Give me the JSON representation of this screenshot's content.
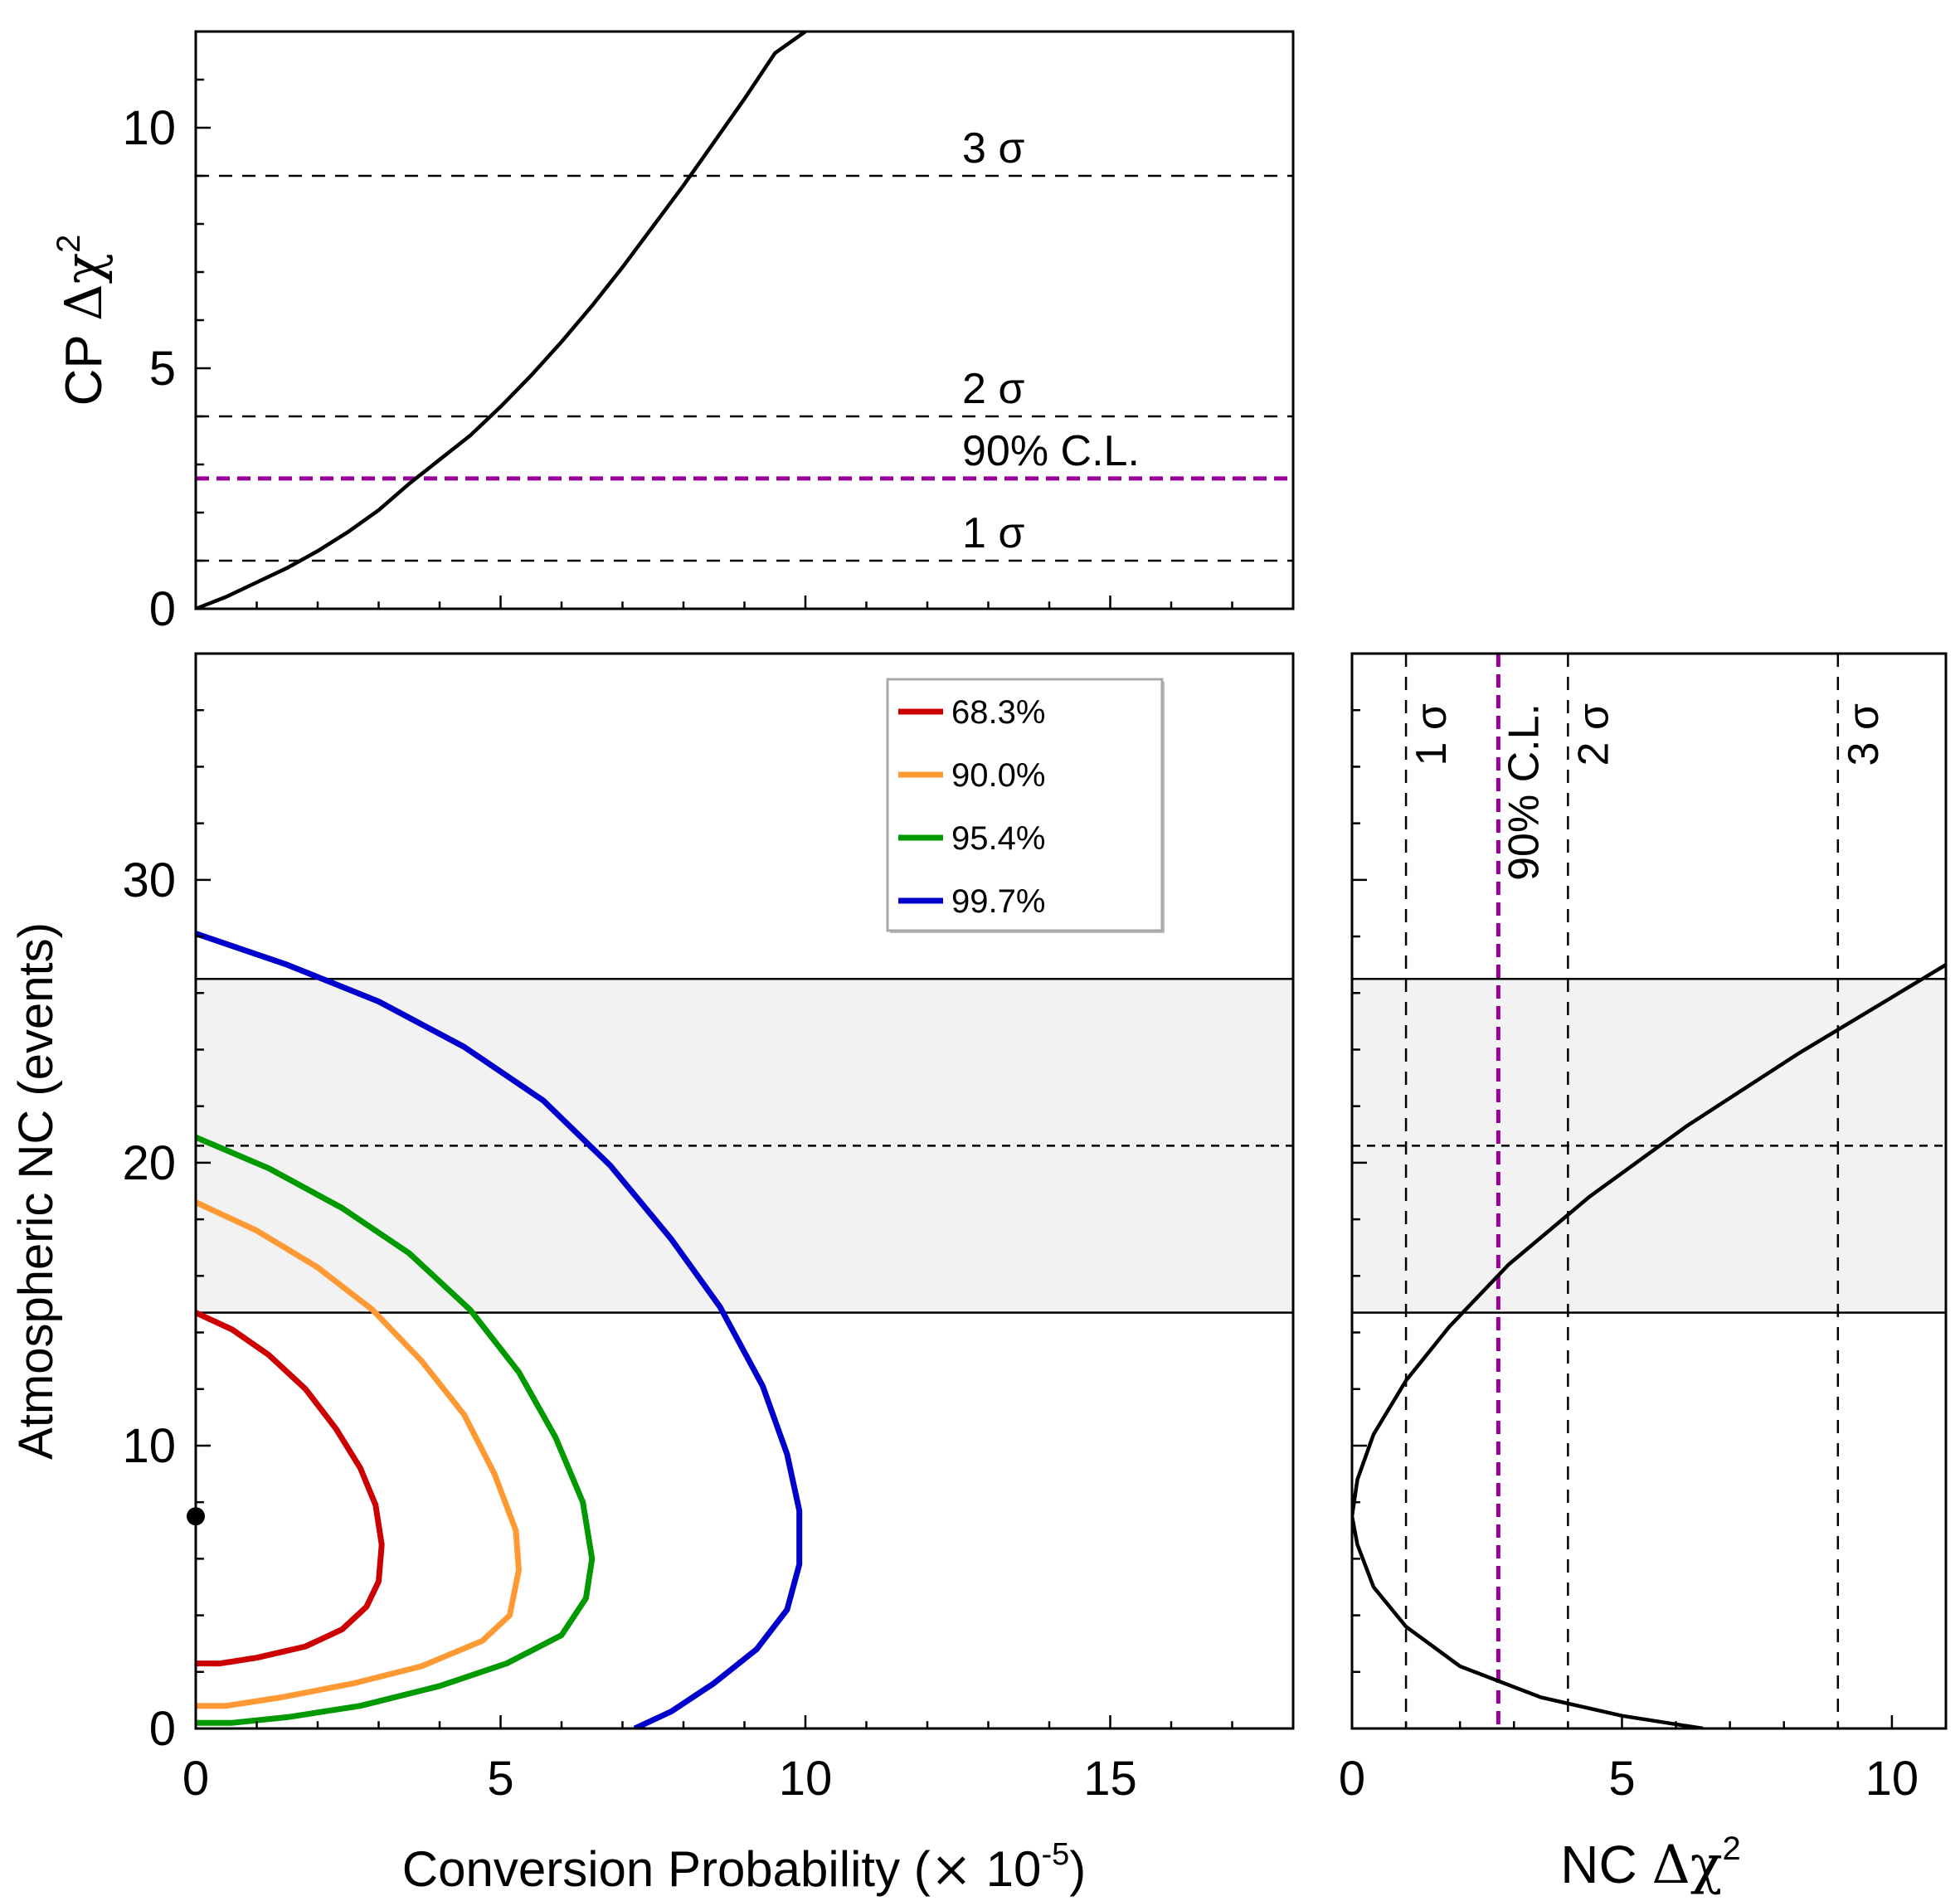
{
  "chart_data": [
    {
      "panel": "top",
      "type": "line",
      "xlim": [
        0,
        18
      ],
      "ylim": [
        0,
        12
      ],
      "ylabel": {
        "prefix": "CP ",
        "delta": "Δχ",
        "sup": "2"
      },
      "x_ticks": [],
      "y_ticks": [
        "0",
        "5",
        "10"
      ],
      "series": [
        {
          "color": "#000000",
          "x": [
            0,
            0.5,
            1,
            1.5,
            2,
            2.5,
            3,
            3.5,
            4,
            4.5,
            5,
            5.5,
            6,
            6.5,
            7,
            7.5,
            8,
            8.5,
            9,
            9.5,
            10
          ],
          "y": [
            0,
            0.25,
            0.55,
            0.85,
            1.2,
            1.6,
            2.05,
            2.6,
            3.1,
            3.6,
            4.2,
            4.85,
            5.55,
            6.3,
            7.1,
            7.95,
            8.8,
            9.7,
            10.6,
            11.55,
            12
          ]
        }
      ],
      "reference_lines": [
        {
          "y": 9,
          "label": "3 σ",
          "color": "#000000"
        },
        {
          "y": 4,
          "label": "2 σ",
          "color": "#000000"
        },
        {
          "y": 2.71,
          "label": "90% C.L.",
          "color": "#990099"
        },
        {
          "y": 1,
          "label": "1 σ",
          "color": "#000000"
        }
      ]
    },
    {
      "panel": "main",
      "type": "line",
      "xlabel": {
        "text": "Conversion Probability (",
        "times": "×",
        "base": " 10",
        "sup": "-5",
        "close": ")"
      },
      "ylabel": "Atmospheric NC (events)",
      "xlim": [
        0,
        18
      ],
      "ylim": [
        0,
        38
      ],
      "x_ticks": [
        "0",
        "5",
        "10",
        "15"
      ],
      "y_ticks": [
        "0",
        "10",
        "20",
        "30"
      ],
      "band": {
        "y_low": 14.7,
        "y_high": 26.5,
        "center": 20.6,
        "color": "#f2f2f2"
      },
      "best_fit": {
        "x": 0,
        "y": 7.5
      },
      "legend_position": "top-right",
      "series": [
        {
          "name": "68.3%",
          "color": "#cc0000",
          "x": [
            0,
            0.6,
            1.2,
            1.8,
            2.3,
            2.7,
            2.95,
            3.05,
            3.0,
            2.8,
            2.4,
            1.8,
            1.0,
            0.4,
            0
          ],
          "y": [
            14.7,
            14.1,
            13.2,
            12.0,
            10.6,
            9.2,
            7.9,
            6.5,
            5.2,
            4.3,
            3.5,
            2.9,
            2.5,
            2.3,
            2.3
          ]
        },
        {
          "name": "90.0%",
          "color": "#ff9933",
          "x": [
            0,
            1.0,
            2.0,
            2.9,
            3.7,
            4.4,
            4.9,
            5.25,
            5.3,
            5.15,
            4.7,
            3.7,
            2.6,
            1.4,
            0.5,
            0
          ],
          "y": [
            18.6,
            17.6,
            16.3,
            14.8,
            13.0,
            11.1,
            9.0,
            7.0,
            5.6,
            4.0,
            3.1,
            2.2,
            1.6,
            1.1,
            0.8,
            0.8
          ]
        },
        {
          "name": "95.4%",
          "color": "#009900",
          "x": [
            0,
            1.2,
            2.4,
            3.5,
            4.5,
            5.3,
            5.9,
            6.35,
            6.5,
            6.4,
            6.0,
            5.1,
            4.0,
            2.7,
            1.5,
            0.6,
            0
          ],
          "y": [
            20.9,
            19.8,
            18.4,
            16.8,
            14.8,
            12.6,
            10.3,
            8.0,
            6.0,
            4.6,
            3.3,
            2.3,
            1.5,
            0.8,
            0.4,
            0.2,
            0.2
          ]
        },
        {
          "name": "99.7%",
          "color": "#0000cc",
          "x": [
            0,
            1.5,
            3.0,
            4.4,
            5.7,
            6.8,
            7.8,
            8.6,
            9.3,
            9.7,
            9.9,
            9.9,
            9.7,
            9.2,
            8.5,
            7.8,
            7.2
          ],
          "y": [
            28.1,
            27.0,
            25.7,
            24.1,
            22.2,
            19.9,
            17.3,
            14.9,
            12.1,
            9.7,
            7.7,
            5.8,
            4.2,
            2.8,
            1.6,
            0.6,
            0
          ]
        }
      ]
    },
    {
      "panel": "right",
      "type": "line",
      "xlabel": {
        "prefix": "NC ",
        "delta": "Δχ",
        "sup": "2"
      },
      "xlim": [
        0,
        11
      ],
      "ylim": [
        0,
        38
      ],
      "x_ticks": [
        "0",
        "5",
        "10"
      ],
      "y_ticks": [],
      "band": {
        "y_low": 14.7,
        "y_high": 26.5,
        "center": 20.6,
        "color": "#f2f2f2"
      },
      "series": [
        {
          "color": "#000000",
          "x": [
            6.5,
            5.0,
            3.5,
            2.0,
            1.0,
            0.4,
            0.1,
            0,
            0.1,
            0.4,
            1.0,
            1.8,
            2.9,
            4.4,
            6.2,
            8.3,
            11.0
          ],
          "y": [
            0,
            0.45,
            1.1,
            2.2,
            3.6,
            5.0,
            6.5,
            7.5,
            8.8,
            10.4,
            12.3,
            14.2,
            16.4,
            18.8,
            21.3,
            23.9,
            27.0
          ]
        }
      ],
      "reference_lines": [
        {
          "x": 1,
          "label": "1 σ",
          "color": "#000000"
        },
        {
          "x": 2.71,
          "label": "90% C.L.",
          "color": "#990099"
        },
        {
          "x": 4,
          "label": "2 σ",
          "color": "#000000"
        },
        {
          "x": 9,
          "label": "3 σ",
          "color": "#000000"
        }
      ]
    }
  ]
}
